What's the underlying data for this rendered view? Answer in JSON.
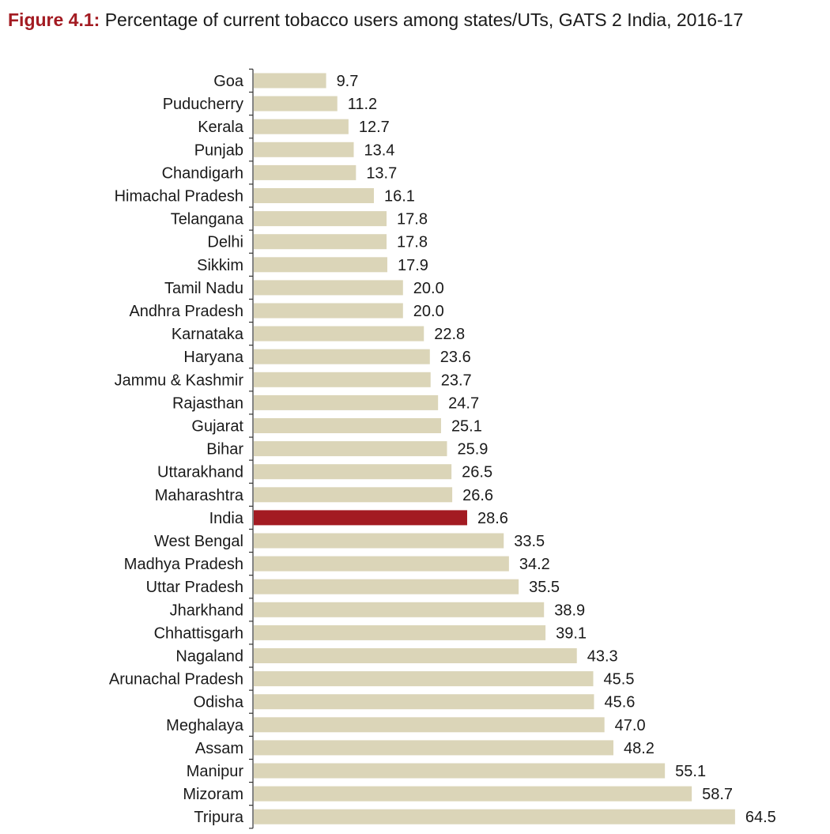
{
  "figure": {
    "label": "Figure 4.1:",
    "title": "Percentage of current tobacco users among states/UTs, GATS 2 India, 2016-17"
  },
  "colors": {
    "bar": "#dbd5b8",
    "highlight_bar": "#a31b22",
    "axis": "#333333",
    "title_accent": "#a31b22"
  },
  "chart_data": {
    "type": "bar",
    "orientation": "horizontal",
    "title": "Percentage of current tobacco users among states/UTs, GATS 2 India, 2016-17",
    "xlabel": "",
    "ylabel": "",
    "xlim": [
      0,
      70
    ],
    "highlight": "India",
    "categories": [
      "Goa",
      "Puducherry",
      "Kerala",
      "Punjab",
      "Chandigarh",
      "Himachal Pradesh",
      "Telangana",
      "Delhi",
      "Sikkim",
      "Tamil Nadu",
      "Andhra Pradesh",
      "Karnataka",
      "Haryana",
      "Jammu & Kashmir",
      "Rajasthan",
      "Gujarat",
      "Bihar",
      "Uttarakhand",
      "Maharashtra",
      "India",
      "West Bengal",
      "Madhya Pradesh",
      "Uttar Pradesh",
      "Jharkhand",
      "Chhattisgarh",
      "Nagaland",
      "Arunachal Pradesh",
      "Odisha",
      "Meghalaya",
      "Assam",
      "Manipur",
      "Mizoram",
      "Tripura"
    ],
    "values": [
      9.7,
      11.2,
      12.7,
      13.4,
      13.7,
      16.1,
      17.8,
      17.8,
      17.9,
      20.0,
      20.0,
      22.8,
      23.6,
      23.7,
      24.7,
      25.1,
      25.9,
      26.5,
      26.6,
      28.6,
      33.5,
      34.2,
      35.5,
      38.9,
      39.1,
      43.3,
      45.5,
      45.6,
      47.0,
      48.2,
      55.1,
      58.7,
      64.5
    ],
    "value_labels": [
      "9.7",
      "11.2",
      "12.7",
      "13.4",
      "13.7",
      "16.1",
      "17.8",
      "17.8",
      "17.9",
      "20.0",
      "20.0",
      "22.8",
      "23.6",
      "23.7",
      "24.7",
      "25.1",
      "25.9",
      "26.5",
      "26.6",
      "28.6",
      "33.5",
      "34.2",
      "35.5",
      "38.9",
      "39.1",
      "43.3",
      "45.5",
      "45.6",
      "47.0",
      "48.2",
      "55.1",
      "58.7",
      "64.5"
    ]
  }
}
